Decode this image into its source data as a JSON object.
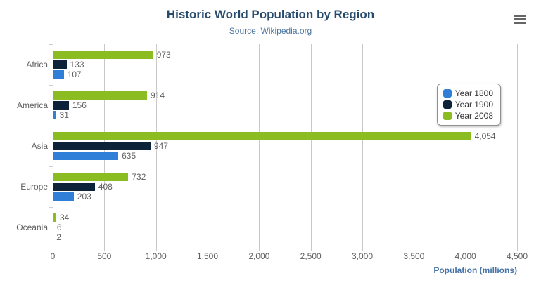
{
  "chart_data": {
    "type": "bar",
    "orientation": "horizontal",
    "title": "Historic World Population by Region",
    "subtitle": "Source: Wikipedia.org",
    "categories": [
      "Africa",
      "America",
      "Asia",
      "Europe",
      "Oceania"
    ],
    "series": [
      {
        "name": "Year 1800",
        "color": "#2f7ed8",
        "values": [
          107,
          31,
          635,
          203,
          2
        ]
      },
      {
        "name": "Year 1900",
        "color": "#0d233a",
        "values": [
          133,
          156,
          947,
          408,
          6
        ]
      },
      {
        "name": "Year 2008",
        "color": "#8bbc21",
        "values": [
          973,
          914,
          4054,
          732,
          34
        ]
      }
    ],
    "series_display_order_top_to_bottom": [
      "Year 2008",
      "Year 1900",
      "Year 1800"
    ],
    "data_labels": [
      "973",
      "133",
      "107",
      "914",
      "156",
      "31",
      "4,054",
      "947",
      "635",
      "732",
      "408",
      "203",
      "34",
      "6",
      "2"
    ],
    "xlabel": "Population (millions)",
    "xlim": [
      0,
      4500
    ],
    "x_ticks": [
      0,
      500,
      1000,
      1500,
      2000,
      2500,
      3000,
      3500,
      4000,
      4500
    ],
    "x_tick_labels": [
      "0",
      "500",
      "1,000",
      "1,500",
      "2,000",
      "2,500",
      "3,000",
      "3,500",
      "4,000",
      "4,500"
    ],
    "grid": true,
    "legend_position": "right",
    "legend_entries": [
      "Year 1800",
      "Year 1900",
      "Year 2008"
    ]
  },
  "export_menu": {
    "icon": "hamburger-icon"
  },
  "theme": {
    "background": "#ffffff",
    "title_color": "#274b6d",
    "subtitle_color": "#4d759e",
    "axis_label_color": "#606060",
    "data_label_color": "#606060",
    "axis_title_color": "#4572a7",
    "grid_color": "#c9c9c9",
    "axis_line_color": "#c0d0e0",
    "legend_border_color": "#909090",
    "legend_text_color": "#333333",
    "menu_icon_color": "#666666"
  }
}
